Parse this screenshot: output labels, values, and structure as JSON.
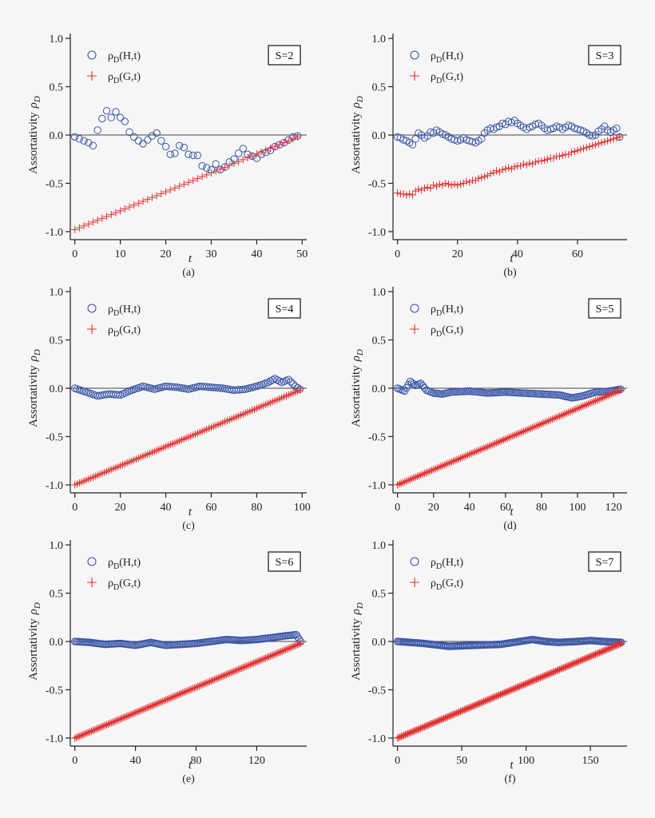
{
  "chart_data": [
    {
      "type": "scatter",
      "panel": "(a)",
      "annotation": "S=2",
      "xlabel": "t",
      "ylabel": "Assortativity",
      "ylabel_symbol": "ρ",
      "ylabel_sub": "D",
      "xlim": [
        -1,
        51
      ],
      "ylim": [
        -1.05,
        1.05
      ],
      "xticks": [
        0,
        10,
        20,
        30,
        40,
        50
      ],
      "yticks": [
        -1.0,
        -0.5,
        0.0,
        0.5,
        1.0
      ],
      "ytick_labels": [
        "-1.0",
        "-0.5",
        "0.0",
        "0.5",
        "1.0"
      ],
      "legend_position": "top-left",
      "series": [
        {
          "name": "ρD(H,t)",
          "label_main": "ρ",
          "label_sub": "D",
          "label_rest": "(H,t)",
          "marker": "circle",
          "color": "#3a56a8",
          "t_end": 49,
          "values": [
            -0.02,
            -0.04,
            -0.06,
            -0.08,
            -0.11,
            0.05,
            0.17,
            0.25,
            0.18,
            0.24,
            0.18,
            0.14,
            0.03,
            -0.02,
            -0.06,
            -0.09,
            -0.05,
            -0.01,
            0.02,
            -0.06,
            -0.12,
            -0.2,
            -0.19,
            -0.11,
            -0.13,
            -0.2,
            -0.21,
            -0.21,
            -0.32,
            -0.34,
            -0.36,
            -0.3,
            -0.36,
            -0.33,
            -0.28,
            -0.25,
            -0.19,
            -0.14,
            -0.2,
            -0.22,
            -0.24,
            -0.2,
            -0.18,
            -0.16,
            -0.12,
            -0.1,
            -0.08,
            -0.05,
            -0.02,
            -0.01
          ]
        },
        {
          "name": "ρD(G,t)",
          "label_main": "ρ",
          "label_sub": "D",
          "label_rest": "(G,t)",
          "marker": "plus",
          "color": "#e03030",
          "t_end": 49,
          "start": -0.98,
          "end": -0.02
        }
      ]
    },
    {
      "type": "scatter",
      "panel": "(b)",
      "annotation": "S=3",
      "xlabel": "t",
      "ylabel": "Assortativity",
      "ylabel_symbol": "ρ",
      "ylabel_sub": "D",
      "xlim": [
        -1.5,
        76.5
      ],
      "ylim": [
        -1.05,
        1.05
      ],
      "xticks": [
        0,
        20,
        40,
        60
      ],
      "yticks": [
        -1.0,
        -0.5,
        0.0,
        0.5,
        1.0
      ],
      "ytick_labels": [
        "-1.0",
        "-0.5",
        "0.0",
        "0.5",
        "1.0"
      ],
      "legend_position": "top-left",
      "series": [
        {
          "name": "ρD(H,t)",
          "label_main": "ρ",
          "label_sub": "D",
          "label_rest": "(H,t)",
          "marker": "circle",
          "color": "#3a56a8",
          "t_end": 74,
          "values": [
            -0.02,
            -0.03,
            -0.05,
            -0.06,
            -0.08,
            -0.1,
            -0.04,
            0.02,
            0.0,
            -0.03,
            -0.01,
            0.03,
            0.02,
            0.05,
            0.03,
            0.01,
            0.0,
            -0.02,
            -0.04,
            -0.05,
            -0.06,
            -0.05,
            -0.03,
            -0.05,
            -0.06,
            -0.07,
            -0.08,
            -0.06,
            -0.04,
            0.02,
            0.05,
            0.07,
            0.06,
            0.08,
            0.09,
            0.12,
            0.11,
            0.14,
            0.13,
            0.15,
            0.12,
            0.1,
            0.08,
            0.06,
            0.08,
            0.09,
            0.11,
            0.12,
            0.1,
            0.07,
            0.05,
            0.06,
            0.07,
            0.09,
            0.08,
            0.06,
            0.08,
            0.1,
            0.09,
            0.07,
            0.06,
            0.05,
            0.04,
            0.02,
            0.0,
            -0.01,
            0.0,
            0.04,
            0.06,
            0.09,
            0.05,
            0.03,
            0.05,
            0.07,
            -0.02
          ]
        },
        {
          "name": "ρD(G,t)",
          "label_main": "ρ",
          "label_sub": "D",
          "label_rest": "(G,t)",
          "marker": "plus",
          "color": "#e03030",
          "t_end": 74,
          "values": [
            -0.6,
            -0.61,
            -0.61,
            -0.62,
            -0.61,
            -0.62,
            -0.58,
            -0.56,
            -0.57,
            -0.55,
            -0.54,
            -0.55,
            -0.52,
            -0.53,
            -0.51,
            -0.52,
            -0.5,
            -0.51,
            -0.52,
            -0.51,
            -0.52,
            -0.51,
            -0.5,
            -0.48,
            -0.49,
            -0.47,
            -0.47,
            -0.45,
            -0.44,
            -0.43,
            -0.42,
            -0.4,
            -0.39,
            -0.37,
            -0.38,
            -0.36,
            -0.35,
            -0.34,
            -0.35,
            -0.33,
            -0.32,
            -0.32,
            -0.3,
            -0.31,
            -0.29,
            -0.3,
            -0.28,
            -0.27,
            -0.27,
            -0.26,
            -0.25,
            -0.24,
            -0.24,
            -0.22,
            -0.22,
            -0.21,
            -0.2,
            -0.2,
            -0.18,
            -0.17,
            -0.16,
            -0.15,
            -0.14,
            -0.13,
            -0.12,
            -0.11,
            -0.1,
            -0.09,
            -0.08,
            -0.07,
            -0.06,
            -0.05,
            -0.04,
            -0.03,
            -0.02
          ]
        }
      ]
    },
    {
      "type": "scatter",
      "panel": "(c)",
      "annotation": "S=4",
      "xlabel": "t",
      "ylabel": "Assortativity",
      "ylabel_symbol": "ρ",
      "ylabel_sub": "D",
      "xlim": [
        -2,
        102
      ],
      "ylim": [
        -1.05,
        1.05
      ],
      "xticks": [
        0,
        20,
        40,
        60,
        80,
        100
      ],
      "yticks": [
        -1.0,
        -0.5,
        0.0,
        0.5,
        1.0
      ],
      "ytick_labels": [
        "-1.0",
        "-0.5",
        "0.0",
        "0.5",
        "1.0"
      ],
      "legend_position": "top-left",
      "series": [
        {
          "name": "ρD(H,t)",
          "label_main": "ρ",
          "label_sub": "D",
          "label_rest": "(H,t)",
          "marker": "circle",
          "color": "#3a56a8",
          "t_end": 99,
          "knots": [
            [
              0,
              0.0
            ],
            [
              5,
              -0.04
            ],
            [
              10,
              -0.08
            ],
            [
              15,
              -0.06
            ],
            [
              20,
              -0.07
            ],
            [
              25,
              -0.02
            ],
            [
              30,
              0.02
            ],
            [
              35,
              -0.01
            ],
            [
              40,
              0.02
            ],
            [
              45,
              0.01
            ],
            [
              50,
              -0.01
            ],
            [
              55,
              0.02
            ],
            [
              60,
              0.01
            ],
            [
              65,
              0.0
            ],
            [
              70,
              -0.02
            ],
            [
              75,
              -0.01
            ],
            [
              80,
              0.02
            ],
            [
              85,
              0.06
            ],
            [
              88,
              0.1
            ],
            [
              91,
              0.06
            ],
            [
              94,
              0.09
            ],
            [
              97,
              0.02
            ],
            [
              99,
              -0.01
            ]
          ]
        },
        {
          "name": "ρD(G,t)",
          "label_main": "ρ",
          "label_sub": "D",
          "label_rest": "(G,t)",
          "marker": "plus",
          "color": "#e03030",
          "t_end": 99,
          "start": -1.0,
          "end": -0.02
        }
      ]
    },
    {
      "type": "scatter",
      "panel": "(d)",
      "annotation": "S=5",
      "xlabel": "t",
      "ylabel": "Assortativity",
      "ylabel_symbol": "ρ",
      "ylabel_sub": "D",
      "xlim": [
        -2.5,
        127.5
      ],
      "ylim": [
        -1.05,
        1.05
      ],
      "xticks": [
        0,
        20,
        40,
        60,
        80,
        100,
        120
      ],
      "yticks": [
        -1.0,
        -0.5,
        0.0,
        0.5,
        1.0
      ],
      "ytick_labels": [
        "-1.0",
        "-0.5",
        "0.0",
        "0.5",
        "1.0"
      ],
      "legend_position": "top-left",
      "series": [
        {
          "name": "ρD(H,t)",
          "label_main": "ρ",
          "label_sub": "D",
          "label_rest": "(H,t)",
          "marker": "circle",
          "color": "#3a56a8",
          "t_end": 124,
          "knots": [
            [
              0,
              0.0
            ],
            [
              4,
              -0.03
            ],
            [
              7,
              0.07
            ],
            [
              10,
              0.03
            ],
            [
              13,
              0.05
            ],
            [
              16,
              -0.02
            ],
            [
              20,
              -0.05
            ],
            [
              25,
              -0.06
            ],
            [
              30,
              -0.04
            ],
            [
              40,
              -0.03
            ],
            [
              50,
              -0.05
            ],
            [
              60,
              -0.04
            ],
            [
              70,
              -0.05
            ],
            [
              80,
              -0.06
            ],
            [
              90,
              -0.07
            ],
            [
              97,
              -0.1
            ],
            [
              103,
              -0.08
            ],
            [
              110,
              -0.04
            ],
            [
              118,
              -0.03
            ],
            [
              124,
              -0.01
            ]
          ]
        },
        {
          "name": "ρD(G,t)",
          "label_main": "ρ",
          "label_sub": "D",
          "label_rest": "(G,t)",
          "marker": "plus",
          "color": "#e03030",
          "t_end": 124,
          "start": -1.0,
          "end": -0.02
        }
      ]
    },
    {
      "type": "scatter",
      "panel": "(e)",
      "annotation": "S=6",
      "xlabel": "t",
      "ylabel": "Assortativity",
      "ylabel_symbol": "ρ",
      "ylabel_sub": "D",
      "xlim": [
        -3,
        153
      ],
      "ylim": [
        -1.05,
        1.05
      ],
      "xticks": [
        0,
        40,
        80,
        120
      ],
      "yticks": [
        -1.0,
        -0.5,
        0.0,
        0.5,
        1.0
      ],
      "ytick_labels": [
        "-1.0",
        "-0.5",
        "0.0",
        "0.5",
        "1.0"
      ],
      "legend_position": "top-left",
      "series": [
        {
          "name": "ρD(H,t)",
          "label_main": "ρ",
          "label_sub": "D",
          "label_rest": "(H,t)",
          "marker": "circle",
          "color": "#3a56a8",
          "t_end": 149,
          "knots": [
            [
              0,
              0.0
            ],
            [
              10,
              -0.01
            ],
            [
              20,
              -0.03
            ],
            [
              30,
              -0.02
            ],
            [
              40,
              -0.04
            ],
            [
              50,
              -0.01
            ],
            [
              60,
              -0.04
            ],
            [
              70,
              -0.03
            ],
            [
              80,
              -0.02
            ],
            [
              90,
              0.0
            ],
            [
              100,
              0.02
            ],
            [
              110,
              0.01
            ],
            [
              120,
              0.02
            ],
            [
              130,
              0.04
            ],
            [
              140,
              0.06
            ],
            [
              146,
              0.07
            ],
            [
              149,
              0.0
            ]
          ]
        },
        {
          "name": "ρD(G,t)",
          "label_main": "ρ",
          "label_sub": "D",
          "label_rest": "(G,t)",
          "marker": "plus",
          "color": "#e03030",
          "t_end": 149,
          "start": -1.0,
          "end": -0.02
        }
      ]
    },
    {
      "type": "scatter",
      "panel": "(f)",
      "annotation": "S=7",
      "xlabel": "t",
      "ylabel": "Assortativity",
      "ylabel_symbol": "ρ",
      "ylabel_sub": "D",
      "xlim": [
        -3.5,
        178.5
      ],
      "ylim": [
        -1.05,
        1.05
      ],
      "xticks": [
        0,
        50,
        100,
        150
      ],
      "yticks": [
        -1.0,
        -0.5,
        0.0,
        0.5,
        1.0
      ],
      "ytick_labels": [
        "-1.0",
        "-0.5",
        "0.0",
        "0.5",
        "1.0"
      ],
      "legend_position": "top-left",
      "series": [
        {
          "name": "ρD(H,t)",
          "label_main": "ρ",
          "label_sub": "D",
          "label_rest": "(H,t)",
          "marker": "circle",
          "color": "#3a56a8",
          "t_end": 174,
          "knots": [
            [
              0,
              0.0
            ],
            [
              20,
              -0.02
            ],
            [
              40,
              -0.05
            ],
            [
              60,
              -0.04
            ],
            [
              80,
              -0.03
            ],
            [
              95,
              0.0
            ],
            [
              105,
              0.02
            ],
            [
              115,
              0.0
            ],
            [
              125,
              -0.01
            ],
            [
              140,
              0.0
            ],
            [
              150,
              0.01
            ],
            [
              160,
              0.0
            ],
            [
              174,
              -0.01
            ]
          ]
        },
        {
          "name": "ρD(G,t)",
          "label_main": "ρ",
          "label_sub": "D",
          "label_rest": "(G,t)",
          "marker": "plus",
          "color": "#e03030",
          "t_end": 174,
          "start": -1.0,
          "end": -0.02
        }
      ]
    }
  ]
}
